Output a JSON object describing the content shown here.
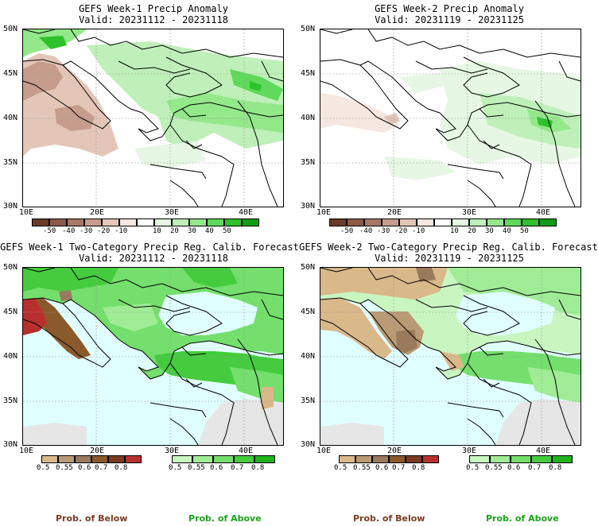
{
  "panels": [
    {
      "id": "p1",
      "title": "GEFS Week-1 Precip Anomaly",
      "valid": "Valid: 20231112 - 20231118"
    },
    {
      "id": "p2",
      "title": "GEFS Week-2 Precip Anomaly",
      "valid": "Valid: 20231119 - 20231125"
    },
    {
      "id": "p3",
      "title": "GEFS Week-1 Two-Category Precip Reg. Calib. Forecast",
      "valid": "Valid: 20231112 - 20231118"
    },
    {
      "id": "p4",
      "title": "GEFS Week-2 Two-Category Precip Reg. Calib. Forecast",
      "valid": "Valid: 20231119 - 20231125"
    }
  ],
  "axes": {
    "lat_labels": [
      "50N",
      "45N",
      "40N",
      "35N",
      "30N"
    ],
    "lon_labels": [
      "10E",
      "20E",
      "30E",
      "40E"
    ]
  },
  "anomaly_scale": {
    "labels": [
      "-50",
      "-40",
      "-30",
      "-20",
      "-10",
      "10",
      "20",
      "30",
      "40",
      "50"
    ],
    "colors": [
      "#6b3a2a",
      "#8c5a48",
      "#a77968",
      "#c69c8c",
      "#e3c6b8",
      "#f5e8e0",
      "#ffffff",
      "#e6f7e3",
      "#bff0b9",
      "#93e88a",
      "#5fd95a",
      "#2fc12c",
      "#0f9c16"
    ]
  },
  "below_scale": {
    "labels": [
      "0.5",
      "0.55",
      "0.6",
      "0.7",
      "0.8"
    ],
    "colors": [
      "#d9b88a",
      "#b89a74",
      "#9a7a5c",
      "#8b5a2b",
      "#7a3b22",
      "#b8302e"
    ],
    "caption": "Prob. of Below",
    "caption_color": "#7a3b22"
  },
  "above_scale": {
    "labels": [
      "0.5",
      "0.55",
      "0.6",
      "0.7",
      "0.8"
    ],
    "colors": [
      "#c8f5c0",
      "#a0ec96",
      "#74df6c",
      "#44cc3e",
      "#1fb31d"
    ],
    "caption": "Prob. of Above",
    "caption_color": "#19a319"
  },
  "colors": {
    "sea_prob": "#e0ffff",
    "dry_gray": "#e6e6e6",
    "land_white": "#ffffff"
  }
}
